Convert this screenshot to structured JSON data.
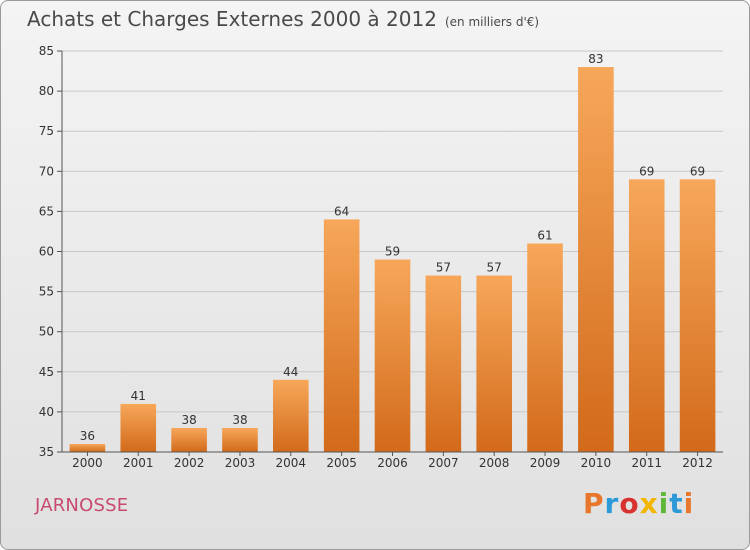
{
  "page": {
    "title": "Achats et Charges Externes 2000 à 2012",
    "unit": "(en milliers d'€)",
    "commune": "JARNOSSE",
    "brand": "Proxiti"
  },
  "chart_data": {
    "type": "bar",
    "categories": [
      "2000",
      "2001",
      "2002",
      "2003",
      "2004",
      "2005",
      "2006",
      "2007",
      "2008",
      "2009",
      "2010",
      "2011",
      "2012"
    ],
    "values": [
      36,
      41,
      38,
      38,
      44,
      64,
      59,
      57,
      57,
      61,
      83,
      69,
      69
    ],
    "title": "Achats et Charges Externes 2000 à 2012",
    "subtitle": "(en milliers d'€)",
    "xlabel": "",
    "ylabel": "",
    "ylim": [
      35,
      85
    ],
    "yticks": [
      35,
      40,
      45,
      50,
      55,
      60,
      65,
      70,
      75,
      80,
      85
    ],
    "grid": true,
    "colors": {
      "bar_light": "#f7a75a",
      "bar_dark": "#d26a1a",
      "grid": "#c8c8c8",
      "axis": "#555555",
      "text": "#333333"
    }
  },
  "logo_colors": [
    "#e8762c",
    "#2d9ad8",
    "#d8322f",
    "#f2b600",
    "#5fb83a",
    "#2d9ad8",
    "#e8762c"
  ]
}
